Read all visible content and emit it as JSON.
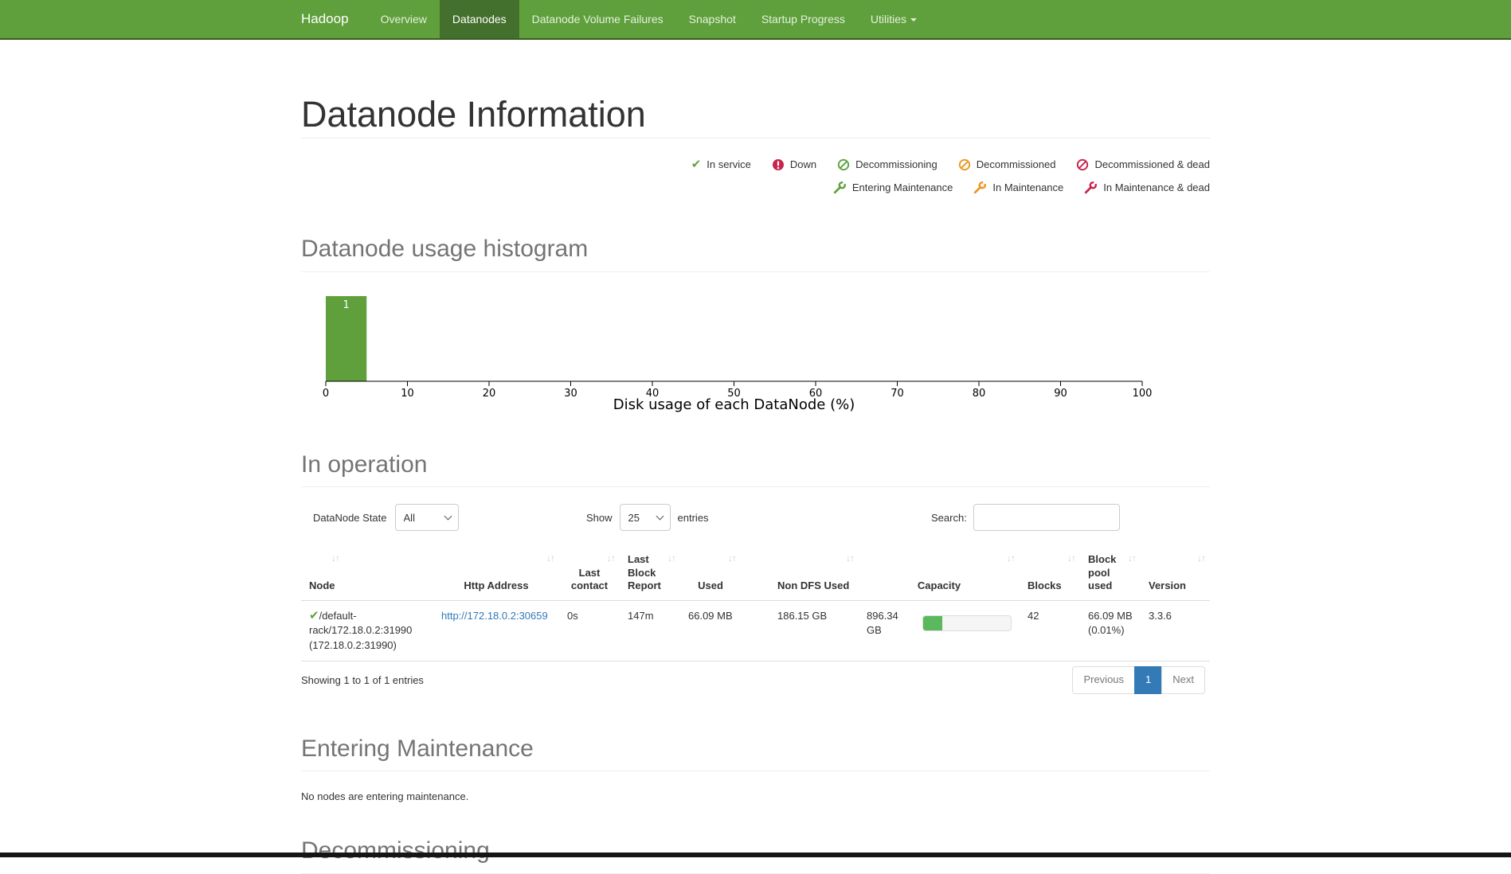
{
  "navbar": {
    "brand": "Hadoop",
    "background_color": "#5fa03c",
    "active_background_color": "#44702d",
    "items": [
      {
        "label": "Overview"
      },
      {
        "label": "Datanodes",
        "active": true
      },
      {
        "label": "Datanode Volume Failures"
      },
      {
        "label": "Snapshot"
      },
      {
        "label": "Startup Progress"
      },
      {
        "label": "Utilities",
        "has_dropdown": true
      }
    ]
  },
  "page_title": "Datanode Information",
  "legend": {
    "rows": [
      [
        {
          "icon": "check-icon",
          "color": "#5fa341",
          "label": "In service"
        },
        {
          "icon": "exclamation-circle-icon",
          "color": "#c7254e",
          "label": "Down"
        },
        {
          "icon": "ban-icon",
          "color": "#5fa341",
          "label": "Decommissioning"
        },
        {
          "icon": "ban-icon",
          "color": "#ec971f",
          "label": "Decommissioned"
        },
        {
          "icon": "ban-icon",
          "color": "#c7254e",
          "label": "Decommissioned & dead"
        }
      ],
      [
        {
          "icon": "wrench-icon",
          "color": "#5fa341",
          "label": "Entering Maintenance"
        },
        {
          "icon": "wrench-icon",
          "color": "#ec971f",
          "label": "In Maintenance"
        },
        {
          "icon": "wrench-icon",
          "color": "#c7254e",
          "label": "In Maintenance & dead"
        }
      ]
    ]
  },
  "sections": {
    "histogram_title": "Datanode usage histogram",
    "in_operation_title": "In operation",
    "entering_maintenance_title": "Entering Maintenance",
    "entering_maintenance_empty": "No nodes are entering maintenance.",
    "decommissioning_title": "Decommissioning"
  },
  "chart_data": {
    "type": "bar",
    "title": "Datanode usage histogram",
    "xlabel": "Disk usage of each DataNode (%)",
    "ylabel": "",
    "xlim": [
      0,
      100
    ],
    "x_ticks": [
      0,
      10,
      20,
      30,
      40,
      50,
      60,
      70,
      80,
      90,
      100
    ],
    "bins": [
      {
        "x0": 0,
        "x1": 5,
        "count": 1
      }
    ],
    "bar_color": "#5fa03c",
    "bar_label_color": "#ffffff",
    "grid": false,
    "legend_position": "none"
  },
  "controls": {
    "state_filter_label": "DataNode State",
    "state_filter_value": "All",
    "show_label": "Show",
    "show_value": "25",
    "entries_label": "entries",
    "search_label": "Search:",
    "search_value": ""
  },
  "table": {
    "columns": [
      "Node",
      "Http Address",
      "Last contact",
      "Last Block Report",
      "Used",
      "Non DFS Used",
      "Capacity",
      "Blocks",
      "Block pool used",
      "Version"
    ],
    "rows": [
      {
        "status_icon": "check-icon",
        "status_color": "#5fa341",
        "node": "/default-rack/172.18.0.2:31990 (172.18.0.2:31990)",
        "http_address": "http://172.18.0.2:30659",
        "last_contact": "0s",
        "last_block_report": "147m",
        "used": "66.09 MB",
        "non_dfs_used": "186.15 GB",
        "capacity": "896.34 GB",
        "capacity_bar_fill": "22%",
        "capacity_bar_color": "#5cb85c",
        "blocks": "42",
        "block_pool_used": "66.09 MB (0.01%)",
        "version": "3.3.6"
      }
    ],
    "link_color": "#337ab7",
    "summary": "Showing 1 to 1 of 1 entries",
    "pagination": {
      "previous": "Previous",
      "current_page": "1",
      "next": "Next",
      "active_color": "#337ab7"
    }
  }
}
